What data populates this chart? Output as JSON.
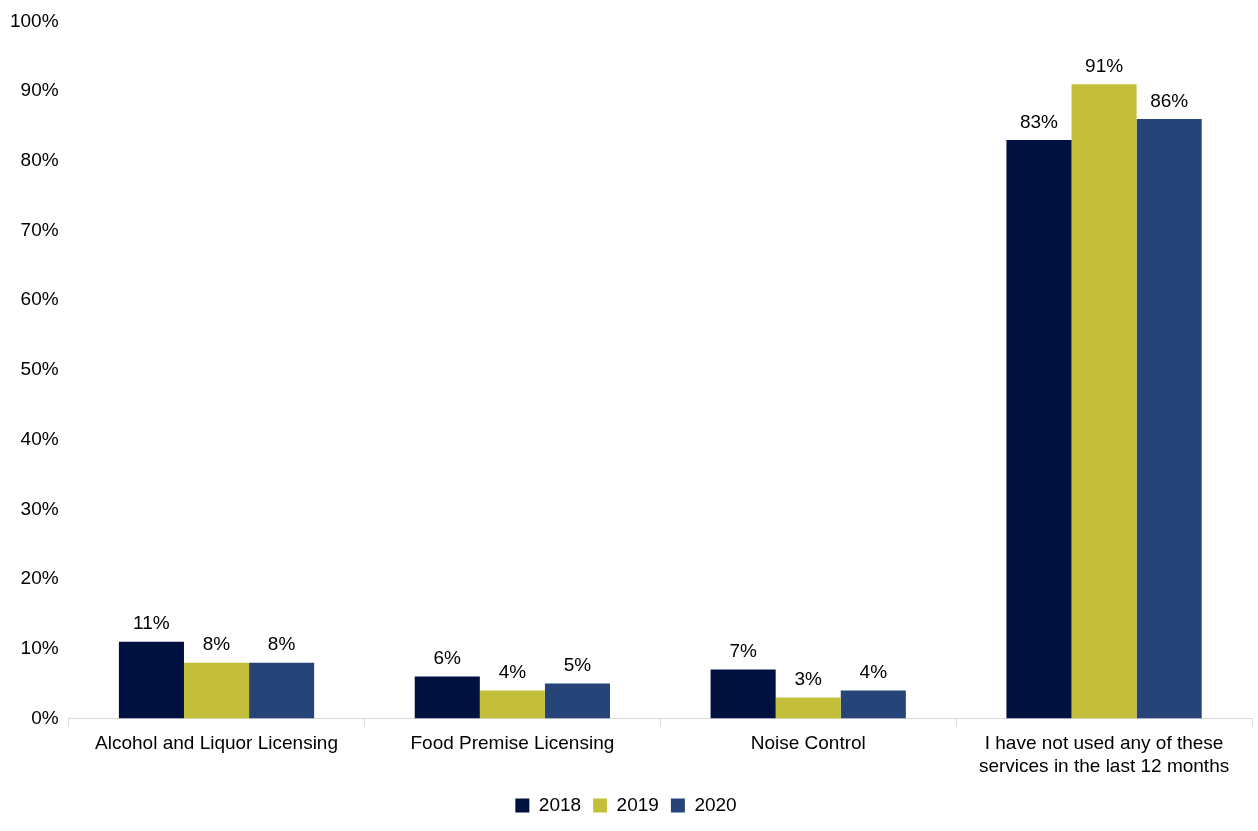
{
  "chart_data": {
    "type": "bar",
    "categories": [
      "Alcohol and Liquor Licensing",
      "Food Premise Licensing",
      "Noise Control",
      "I have not used any of these services in the last 12 months"
    ],
    "series": [
      {
        "name": "2018",
        "color": "#001140",
        "values": [
          11,
          6,
          7,
          83
        ],
        "value_labels": [
          "11%",
          "6%",
          "7%",
          "83%"
        ]
      },
      {
        "name": "2019",
        "color": "#c4bf3a",
        "values": [
          8,
          4,
          3,
          91
        ],
        "value_labels": [
          "8%",
          "4%",
          "3%",
          "91%"
        ]
      },
      {
        "name": "2020",
        "color": "#264478",
        "values": [
          8,
          5,
          4,
          86
        ],
        "value_labels": [
          "8%",
          "5%",
          "4%",
          "86%"
        ]
      }
    ],
    "ylim": [
      0,
      100
    ],
    "yticks": [
      {
        "value": 0,
        "label": "0%"
      },
      {
        "value": 10,
        "label": "10%"
      },
      {
        "value": 20,
        "label": "20%"
      },
      {
        "value": 30,
        "label": "30%"
      },
      {
        "value": 40,
        "label": "40%"
      },
      {
        "value": 50,
        "label": "50%"
      },
      {
        "value": 60,
        "label": "60%"
      },
      {
        "value": 70,
        "label": "70%"
      },
      {
        "value": 80,
        "label": "80%"
      },
      {
        "value": 90,
        "label": "90%"
      },
      {
        "value": 100,
        "label": "100%"
      }
    ],
    "grid": false,
    "legend": "bottom"
  }
}
